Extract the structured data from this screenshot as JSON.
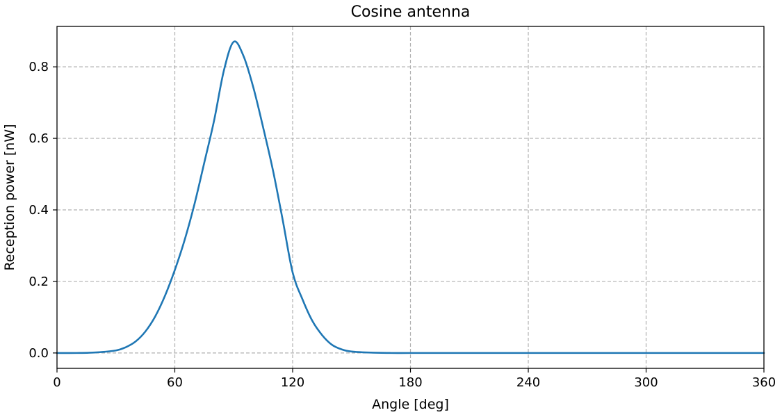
{
  "chart_data": {
    "type": "line",
    "title": "Cosine antenna",
    "xlabel": "Angle [deg]",
    "ylabel": "Reception power [nW]",
    "xlim": [
      0,
      360
    ],
    "ylim": [
      -0.043,
      0.913
    ],
    "xticks": [
      0,
      60,
      120,
      180,
      240,
      300,
      360
    ],
    "yticks": [
      0.0,
      0.2,
      0.4,
      0.6,
      0.8
    ],
    "xtick_labels": [
      "0",
      "60",
      "120",
      "180",
      "240",
      "300",
      "360"
    ],
    "ytick_labels": [
      "0.0",
      "0.2",
      "0.4",
      "0.6",
      "0.8"
    ],
    "grid": true,
    "legend": "none",
    "colors": {
      "series": "#1f77b4",
      "grid": "#b0b0b0",
      "axes": "#000000"
    },
    "series": [
      {
        "x": [
          0,
          10,
          20,
          30,
          35,
          40,
          45,
          50,
          55,
          60,
          65,
          70,
          75,
          80,
          85,
          90,
          95,
          100,
          105,
          110,
          115,
          120,
          125,
          130,
          135,
          140,
          145,
          150,
          160,
          170,
          180,
          200,
          240,
          300,
          360
        ],
        "values": [
          0.0,
          0.0,
          0.0015,
          0.007,
          0.016,
          0.032,
          0.06,
          0.102,
          0.16,
          0.232,
          0.316,
          0.416,
          0.532,
          0.65,
          0.79,
          0.87,
          0.83,
          0.742,
          0.63,
          0.51,
          0.37,
          0.225,
          0.15,
          0.09,
          0.05,
          0.023,
          0.01,
          0.004,
          0.001,
          0.0,
          0.0,
          0.0,
          0.0,
          0.0,
          0.0
        ]
      }
    ]
  }
}
